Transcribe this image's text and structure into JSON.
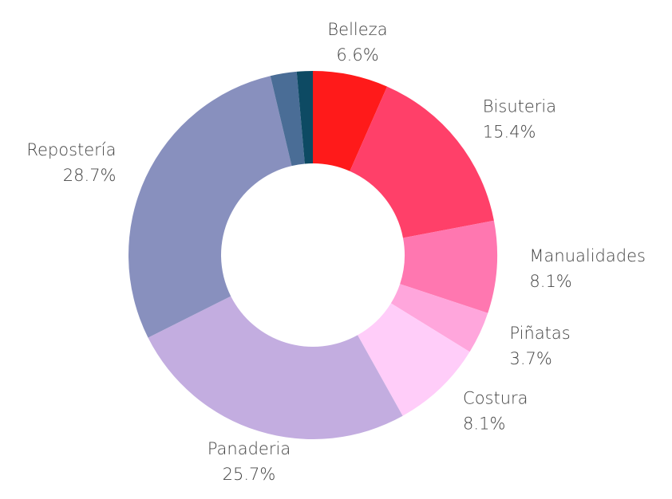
{
  "chart_data": {
    "type": "donut",
    "categories": [
      "Belleza",
      "Bisuteria",
      "Manualidades",
      "Piñatas",
      "Costura",
      "Panaderia",
      "Repostería",
      null,
      null
    ],
    "values": [
      6.6,
      15.4,
      8.1,
      3.7,
      8.1,
      25.7,
      28.7,
      2.3,
      1.4
    ],
    "value_labels": [
      "6.6%",
      "15.4%",
      "8.1%",
      "3.7%",
      "8.1%",
      "25.7%",
      "28.7%",
      null,
      null
    ],
    "colors": [
      "#ff1a1a",
      "#ff4069",
      "#ff77b0",
      "#ffa6dc",
      "#ffcdf9",
      "#c3ade0",
      "#8890be",
      "#4a6d96",
      "#0d4a63"
    ]
  }
}
